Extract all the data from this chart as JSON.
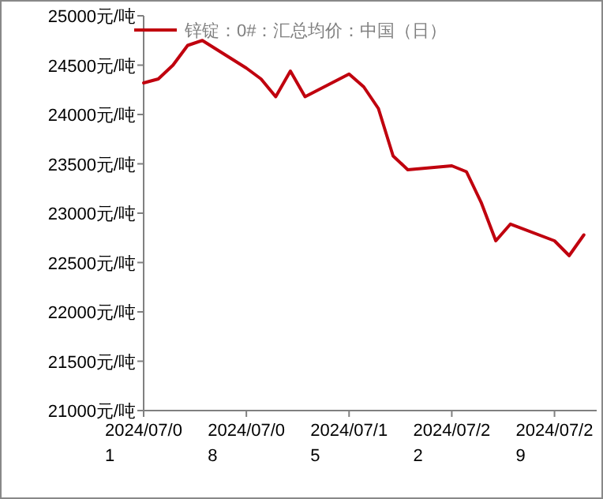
{
  "chart_data": {
    "type": "line",
    "legend": "top left",
    "marker": "none",
    "line_style": "solid",
    "x": [
      "2024-07-01",
      "2024-07-02",
      "2024-07-03",
      "2024-07-04",
      "2024-07-05",
      "2024-07-08",
      "2024-07-09",
      "2024-07-10",
      "2024-07-11",
      "2024-07-12",
      "2024-07-15",
      "2024-07-16",
      "2024-07-17",
      "2024-07-18",
      "2024-07-19",
      "2024-07-22",
      "2024-07-23",
      "2024-07-24",
      "2024-07-25",
      "2024-07-26",
      "2024-07-29",
      "2024-07-30",
      "2024-07-31"
    ],
    "series": [
      {
        "name": "锌锭：0#：汇总均价：中国（日）",
        "color": "#c0000e",
        "values": [
          24320,
          24360,
          24500,
          24700,
          24750,
          24470,
          24360,
          24180,
          24440,
          24180,
          24410,
          24280,
          24060,
          23580,
          23440,
          23480,
          23420,
          23110,
          22720,
          22890,
          22720,
          22570,
          22780
        ]
      }
    ],
    "xlim": [
      "2024-07-01",
      "2024-07-31T21:00"
    ],
    "xticks": [
      {
        "value": "2024-07-01",
        "label": "2024/07/01"
      },
      {
        "value": "2024-07-08",
        "label": "2024/07/08"
      },
      {
        "value": "2024-07-15",
        "label": "2024/07/15"
      },
      {
        "value": "2024-07-22",
        "label": "2024/07/22"
      },
      {
        "value": "2024-07-29",
        "label": "2024/07/29"
      }
    ],
    "ylim": [
      21000,
      25000
    ],
    "yticks": [
      {
        "value": 21000,
        "label": "21000元/吨"
      },
      {
        "value": 21500,
        "label": "21500元/吨"
      },
      {
        "value": 22000,
        "label": "22000元/吨"
      },
      {
        "value": 22500,
        "label": "22500元/吨"
      },
      {
        "value": 23000,
        "label": "23000元/吨"
      },
      {
        "value": 23500,
        "label": "23500元/吨"
      },
      {
        "value": 24000,
        "label": "24000元/吨"
      },
      {
        "value": 24500,
        "label": "24500元/吨"
      },
      {
        "value": 25000,
        "label": "25000元/吨"
      }
    ]
  }
}
